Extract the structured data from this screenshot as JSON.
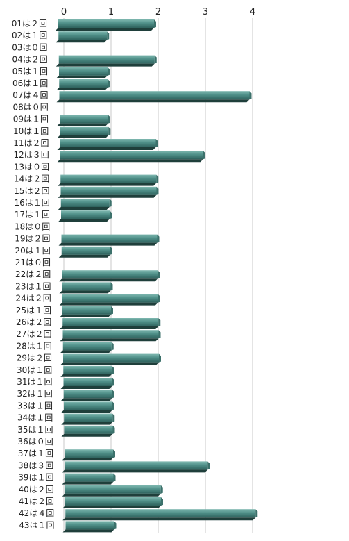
{
  "chart_data": {
    "type": "bar",
    "orientation": "horizontal",
    "title": "",
    "xlabel": "",
    "ylabel": "",
    "xlim": [
      0,
      4
    ],
    "x_ticks": [
      "0",
      "1",
      "2",
      "3",
      "4"
    ],
    "grid": true,
    "legend": "none",
    "bar_color": "#4f8f88",
    "categories": [
      "01は２回",
      "02は１回",
      "03は０回",
      "04は２回",
      "05は１回",
      "06は１回",
      "07は４回",
      "08は０回",
      "09は１回",
      "10は１回",
      "11は２回",
      "12は３回",
      "13は０回",
      "14は２回",
      "15は２回",
      "16は１回",
      "17は１回",
      "18は０回",
      "19は２回",
      "20は１回",
      "21は０回",
      "22は２回",
      "23は１回",
      "24は２回",
      "25は１回",
      "26は２回",
      "27は２回",
      "28は１回",
      "29は２回",
      "30は１回",
      "31は１回",
      "32は１回",
      "33は１回",
      "34は１回",
      "35は１回",
      "36は０回",
      "37は１回",
      "38は３回",
      "39は１回",
      "40は２回",
      "41は２回",
      "42は４回",
      "43は１回"
    ],
    "values": [
      2,
      1,
      0,
      2,
      1,
      1,
      4,
      0,
      1,
      1,
      2,
      3,
      0,
      2,
      2,
      1,
      1,
      0,
      2,
      1,
      0,
      2,
      1,
      2,
      1,
      2,
      2,
      1,
      2,
      1,
      1,
      1,
      1,
      1,
      1,
      0,
      1,
      3,
      1,
      2,
      2,
      4,
      1
    ]
  }
}
